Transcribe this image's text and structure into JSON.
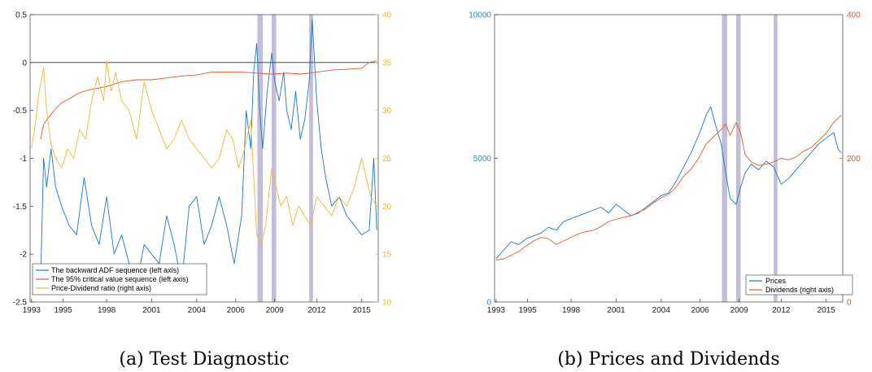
{
  "colors": {
    "adf": "#1f77c4",
    "cv": "#e05a2b",
    "pd": "#f0b83a",
    "prices": "#1f77c4",
    "dividends": "#e05a2b",
    "shade": "#8f88b8",
    "left_axis_b": "#1f8fd6",
    "right_axis_b": "#e05a2b",
    "right_axis_a": "#f0b83a"
  },
  "chart_data": [
    {
      "type": "line",
      "caption": "(a) Test Diagnostic",
      "x_ticks": [
        "1993",
        "1995",
        "1998",
        "2001",
        "2004",
        "2006",
        "2009",
        "2012",
        "2015"
      ],
      "x_tick_values": [
        1993.0,
        1995.1,
        1998.0,
        2001.0,
        2004.0,
        2006.6,
        2009.2,
        2012.0,
        2015.0
      ],
      "xlim": [
        1992.9,
        2016.1
      ],
      "ylim_left": [
        -2.5,
        0.5
      ],
      "yticks_left": [
        "0.5",
        "0",
        "-0.5",
        "-1",
        "-1.5",
        "-2",
        "-2.5"
      ],
      "ytick_values_left": [
        0.5,
        0,
        -0.5,
        -1,
        -1.5,
        -2,
        -2.5
      ],
      "ylim_right": [
        10,
        40
      ],
      "yticks_right": [
        "40",
        "35",
        "30",
        "25",
        "20",
        "15",
        "10"
      ],
      "ytick_values_right": [
        40,
        35,
        30,
        25,
        20,
        15,
        10
      ],
      "zero_line": 0,
      "shaded_periods": [
        [
          2008.05,
          2008.4
        ],
        [
          2009.0,
          2009.3
        ],
        [
          2011.5,
          2011.75
        ]
      ],
      "legend": [
        "The backward ADF sequence (left axis)",
        "The 95% critical value sequence (left axis)",
        "Price-Dividend ratio (right axis)"
      ],
      "series": [
        {
          "name": "The backward ADF sequence (left axis)",
          "axis": "left",
          "x": [
            1993.6,
            1993.8,
            1994.0,
            1994.3,
            1994.6,
            1995.0,
            1995.5,
            1996.0,
            1996.5,
            1997.0,
            1997.5,
            1998.0,
            1998.5,
            1999.0,
            1999.5,
            2000.0,
            2000.5,
            2001.0,
            2001.5,
            2002.0,
            2002.5,
            2003.0,
            2003.5,
            2004.0,
            2004.5,
            2005.0,
            2005.5,
            2006.0,
            2006.5,
            2007.0,
            2007.3,
            2007.6,
            2007.8,
            2008.0,
            2008.2,
            2008.4,
            2008.7,
            2009.0,
            2009.2,
            2009.5,
            2009.8,
            2010.0,
            2010.3,
            2010.6,
            2010.9,
            2011.2,
            2011.5,
            2011.7,
            2012.0,
            2012.3,
            2012.6,
            2013.0,
            2013.5,
            2014.0,
            2014.5,
            2015.0,
            2015.5,
            2015.8,
            2016.0
          ],
          "y": [
            -2.3,
            -1.0,
            -1.3,
            -0.9,
            -1.3,
            -1.5,
            -1.7,
            -1.8,
            -1.2,
            -1.7,
            -1.9,
            -1.4,
            -2.0,
            -1.8,
            -2.1,
            -2.3,
            -1.9,
            -2.0,
            -2.1,
            -1.6,
            -1.9,
            -2.3,
            -1.5,
            -1.4,
            -1.9,
            -1.7,
            -1.4,
            -1.7,
            -2.1,
            -1.6,
            -0.5,
            -0.9,
            -0.1,
            0.2,
            -0.5,
            -0.9,
            -0.3,
            0.1,
            -0.2,
            -0.4,
            -0.1,
            -0.5,
            -0.7,
            -0.3,
            -0.8,
            -0.6,
            -0.2,
            0.45,
            -0.4,
            -0.9,
            -1.2,
            -1.5,
            -1.4,
            -1.6,
            -1.7,
            -1.8,
            -1.75,
            -1.0,
            -1.75
          ]
        },
        {
          "name": "The 95% critical value sequence (left axis)",
          "axis": "left",
          "x": [
            1993.6,
            1993.8,
            1994.0,
            1994.5,
            1995.0,
            1995.5,
            1996.0,
            1996.5,
            1997.0,
            1998.0,
            1999.0,
            2000.0,
            2001.0,
            2002.0,
            2003.0,
            2004.0,
            2005.0,
            2006.0,
            2007.0,
            2008.0,
            2009.0,
            2010.0,
            2011.0,
            2012.0,
            2013.0,
            2014.0,
            2015.0,
            2015.5,
            2016.0
          ],
          "y": [
            -0.8,
            -0.65,
            -0.6,
            -0.5,
            -0.42,
            -0.38,
            -0.33,
            -0.3,
            -0.28,
            -0.25,
            -0.2,
            -0.18,
            -0.18,
            -0.16,
            -0.14,
            -0.13,
            -0.1,
            -0.1,
            -0.1,
            -0.11,
            -0.12,
            -0.11,
            -0.12,
            -0.1,
            -0.08,
            -0.07,
            -0.06,
            0.0,
            0.02
          ]
        },
        {
          "name": "Price-Dividend ratio (right axis)",
          "axis": "right",
          "x": [
            1993.0,
            1993.2,
            1993.5,
            1993.8,
            1994.0,
            1994.3,
            1994.6,
            1995.0,
            1995.4,
            1995.8,
            1996.2,
            1996.6,
            1997.0,
            1997.4,
            1997.8,
            1998.0,
            1998.3,
            1998.6,
            1999.0,
            1999.5,
            2000.0,
            2000.5,
            2001.0,
            2001.5,
            2002.0,
            2002.5,
            2003.0,
            2003.5,
            2004.0,
            2004.5,
            2005.0,
            2005.5,
            2006.0,
            2006.4,
            2006.8,
            2007.2,
            2007.6,
            2008.0,
            2008.3,
            2008.6,
            2009.0,
            2009.3,
            2009.6,
            2010.0,
            2010.4,
            2010.8,
            2011.2,
            2011.6,
            2012.0,
            2012.5,
            2013.0,
            2013.5,
            2014.0,
            2014.5,
            2015.0,
            2015.3,
            2015.6,
            2016.0
          ],
          "y": [
            26,
            28,
            32,
            34.5,
            30,
            26.5,
            25,
            24,
            26,
            25,
            28,
            27,
            31,
            33.5,
            31,
            35.2,
            32,
            34,
            31,
            30,
            27,
            33,
            30,
            28,
            26,
            27,
            29,
            27,
            26,
            25,
            24,
            25,
            28,
            27,
            24,
            26,
            29,
            17,
            16,
            18,
            24,
            22,
            20,
            21,
            18,
            20,
            19,
            18,
            21,
            20,
            19,
            21,
            20,
            22,
            25,
            23,
            21,
            20
          ]
        }
      ]
    },
    {
      "type": "line",
      "caption": "(b) Prices and Dividends",
      "x_ticks": [
        "1993",
        "1995",
        "1998",
        "2001",
        "2004",
        "2006",
        "2009",
        "2012",
        "2015"
      ],
      "x_tick_values": [
        1993.0,
        1995.1,
        1998.0,
        2001.0,
        2004.0,
        2006.6,
        2009.2,
        2012.0,
        2015.0
      ],
      "xlim": [
        1992.9,
        2016.1
      ],
      "ylim_left": [
        0,
        10000
      ],
      "yticks_left": [
        "10000",
        "5000",
        "0"
      ],
      "ytick_values_left": [
        10000,
        5000,
        0
      ],
      "ylim_right": [
        0,
        400
      ],
      "yticks_right": [
        "400",
        "200",
        "0"
      ],
      "ytick_values_right": [
        400,
        200,
        0
      ],
      "shaded_periods": [
        [
          2008.05,
          2008.4
        ],
        [
          2009.0,
          2009.3
        ],
        [
          2011.5,
          2011.75
        ]
      ],
      "legend": [
        "Prices",
        "Dividends  (right axis)"
      ],
      "series": [
        {
          "name": "Prices",
          "axis": "left",
          "x": [
            1993.0,
            1993.5,
            1994.0,
            1994.5,
            1995.0,
            1995.5,
            1996.0,
            1996.5,
            1997.0,
            1997.5,
            1998.0,
            1998.5,
            1999.0,
            1999.5,
            2000.0,
            2000.5,
            2001.0,
            2001.5,
            2002.0,
            2002.5,
            2003.0,
            2003.5,
            2004.0,
            2004.5,
            2005.0,
            2005.5,
            2006.0,
            2006.5,
            2007.0,
            2007.3,
            2007.6,
            2008.0,
            2008.3,
            2008.6,
            2009.0,
            2009.3,
            2009.6,
            2010.0,
            2010.5,
            2011.0,
            2011.5,
            2012.0,
            2012.5,
            2013.0,
            2013.5,
            2014.0,
            2014.5,
            2015.0,
            2015.5,
            2015.8,
            2016.0
          ],
          "y": [
            1500,
            1800,
            2100,
            2000,
            2200,
            2300,
            2400,
            2600,
            2500,
            2800,
            2900,
            3000,
            3100,
            3200,
            3300,
            3100,
            3400,
            3200,
            3000,
            3100,
            3300,
            3500,
            3700,
            3800,
            4200,
            4700,
            5200,
            5800,
            6500,
            6800,
            6200,
            5500,
            4500,
            3600,
            3400,
            4000,
            4500,
            4800,
            4600,
            4900,
            4700,
            4100,
            4300,
            4600,
            4900,
            5200,
            5500,
            5700,
            5900,
            5300,
            5200
          ]
        },
        {
          "name": "Dividends  (right axis)",
          "axis": "right",
          "x": [
            1993.0,
            1993.5,
            1994.0,
            1994.5,
            1995.0,
            1995.5,
            1996.0,
            1996.5,
            1997.0,
            1997.5,
            1998.0,
            1998.5,
            1999.0,
            1999.5,
            2000.0,
            2000.5,
            2001.0,
            2001.5,
            2002.0,
            2002.5,
            2003.0,
            2003.5,
            2004.0,
            2004.5,
            2005.0,
            2005.5,
            2006.0,
            2006.5,
            2007.0,
            2007.5,
            2008.0,
            2008.3,
            2008.6,
            2009.0,
            2009.3,
            2009.6,
            2010.0,
            2010.5,
            2011.0,
            2011.5,
            2012.0,
            2012.5,
            2013.0,
            2013.5,
            2014.0,
            2014.5,
            2015.0,
            2015.5,
            2016.0
          ],
          "y": [
            58,
            60,
            65,
            70,
            78,
            85,
            90,
            88,
            80,
            85,
            90,
            95,
            98,
            100,
            105,
            112,
            115,
            118,
            120,
            125,
            130,
            138,
            145,
            150,
            160,
            175,
            185,
            200,
            220,
            230,
            240,
            248,
            232,
            250,
            235,
            205,
            195,
            190,
            192,
            195,
            200,
            198,
            202,
            210,
            215,
            225,
            235,
            250,
            260
          ]
        }
      ]
    }
  ]
}
